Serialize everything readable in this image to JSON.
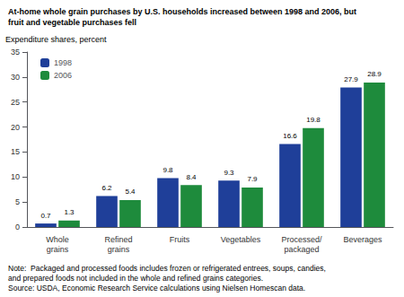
{
  "chart_data": {
    "type": "bar",
    "title": "At-home whole grain purchases by U.S. households increased between 1998 and 2006, but\nfruit and vegetable purchases fell",
    "y_label": "Expenditure shares, percent",
    "categories": [
      "Whole\ngrains",
      "Refined\ngrains",
      "Fruits",
      "Vegetables",
      "Processed/\npackaged",
      "Beverages"
    ],
    "series": [
      {
        "name": "1998",
        "color": "#1F3F99",
        "values": [
          0.7,
          6.2,
          9.8,
          9.3,
          16.6,
          27.9
        ]
      },
      {
        "name": "2006",
        "color": "#1E8B3C",
        "values": [
          1.3,
          5.4,
          8.4,
          7.9,
          19.8,
          28.9
        ]
      }
    ],
    "ylim": [
      0,
      35
    ],
    "yticks": [
      0,
      5,
      10,
      15,
      20,
      25,
      30,
      35
    ],
    "grid": false,
    "legend": "upper left",
    "data_labels": true,
    "annotations": [
      "Note:  Packaged and processed foods includes frozen or refrigerated entrees, soups, candies,",
      "and prepared foods not included in the whole and refined grains categories.",
      "Source: USDA, Economic Research Service calculations using Nielsen Homescan data."
    ]
  }
}
